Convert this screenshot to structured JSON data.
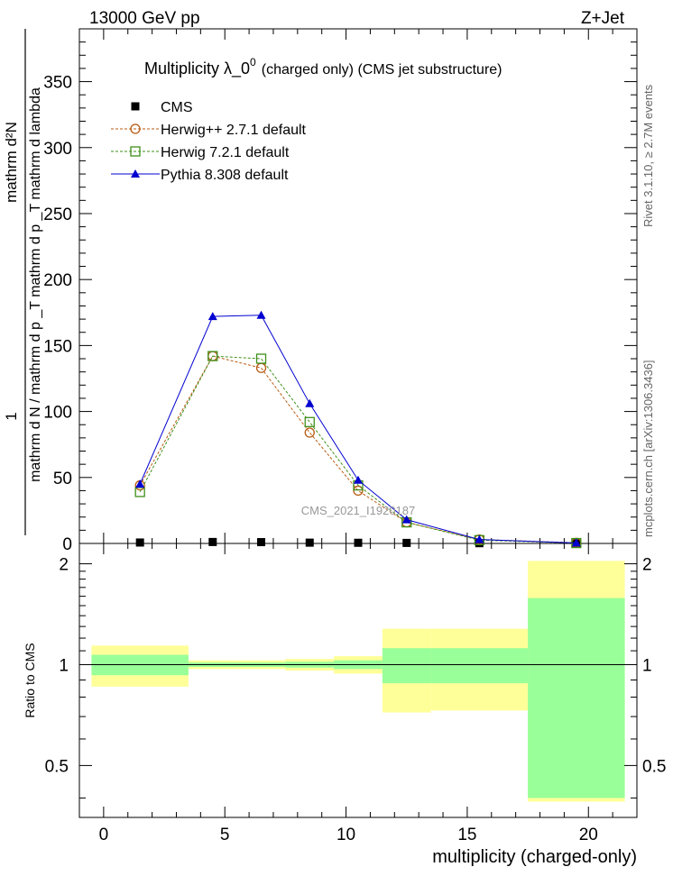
{
  "header": {
    "energy_label": "13000 GeV pp",
    "process_label": "Z+Jet"
  },
  "side_labels": {
    "rivet": "Rivet 3.1.10, ≥ 2.7M events",
    "mcplots": "mcplots.cern.ch [arXiv:1306.3436]"
  },
  "chart_data": [
    {
      "type": "line",
      "title_main": "Multiplicity  λ_0",
      "title_sup": "0",
      "title_rest": "(charged only) (CMS jet substructure)",
      "ylabel_numerator": "1",
      "ylabel_denominator": "mathrm d N / mathrm d p  _T mathrm d p  _T mathrm d lambda",
      "ylabel_top": "mathrm d²N",
      "watermark": "CMS_2021_I1920187",
      "xlim": [
        -1,
        22
      ],
      "ylim": [
        0,
        390
      ],
      "yticks": [
        0,
        50,
        100,
        150,
        200,
        250,
        300,
        350
      ],
      "x": [
        1.5,
        4.5,
        6.5,
        8.5,
        10.5,
        12.5,
        15.5,
        19.5
      ],
      "series": [
        {
          "name": "CMS",
          "marker": "filled-square",
          "color": "#000000",
          "values": [
            0.7,
            1.1,
            1.0,
            0.6,
            0.5,
            0.4,
            0.2,
            0.05
          ]
        },
        {
          "name": "Herwig++ 2.7.1 default",
          "marker": "open-circle",
          "color": "#b85a12",
          "dash": "dotted",
          "values": [
            44,
            142,
            133,
            84,
            40,
            16,
            3,
            0.5
          ]
        },
        {
          "name": "Herwig 7.2.1 default",
          "marker": "open-square",
          "color": "#3f8f1a",
          "dash": "dotted",
          "values": [
            39,
            142,
            140,
            92,
            44,
            16,
            2.5,
            0.3
          ]
        },
        {
          "name": "Pythia 8.308 default",
          "marker": "filled-triangle",
          "color": "#0000d0",
          "dash": "solid",
          "values": [
            45,
            172,
            173,
            106,
            48,
            18,
            3,
            0.4
          ]
        }
      ]
    },
    {
      "type": "area",
      "ylabel": "Ratio to CMS",
      "xlabel": "multiplicity (charged-only)",
      "xlim": [
        -1,
        22
      ],
      "ylim": [
        0.35,
        2.3
      ],
      "xticks": [
        0,
        5,
        10,
        15,
        20
      ],
      "yticks": [
        0.5,
        1,
        2
      ],
      "reference_line": 1,
      "bins": [
        {
          "x0": -0.5,
          "x1": 3.5,
          "green": [
            0.93,
            1.07
          ],
          "yellow": [
            0.86,
            1.14
          ]
        },
        {
          "x0": 3.5,
          "x1": 5.5,
          "green": [
            0.985,
            1.015
          ],
          "yellow": [
            0.97,
            1.03
          ]
        },
        {
          "x0": 5.5,
          "x1": 7.5,
          "green": [
            0.985,
            1.015
          ],
          "yellow": [
            0.97,
            1.03
          ]
        },
        {
          "x0": 7.5,
          "x1": 9.5,
          "green": [
            0.98,
            1.02
          ],
          "yellow": [
            0.96,
            1.04
          ]
        },
        {
          "x0": 9.5,
          "x1": 11.5,
          "green": [
            0.97,
            1.03
          ],
          "yellow": [
            0.94,
            1.06
          ]
        },
        {
          "x0": 11.5,
          "x1": 13.5,
          "green": [
            0.88,
            1.12
          ],
          "yellow": [
            0.72,
            1.28
          ]
        },
        {
          "x0": 13.5,
          "x1": 17.5,
          "green": [
            0.88,
            1.12
          ],
          "yellow": [
            0.73,
            1.28
          ]
        },
        {
          "x0": 17.5,
          "x1": 21.5,
          "green": [
            0.4,
            1.58
          ],
          "yellow": [
            0.39,
            2.04
          ]
        }
      ],
      "colors": {
        "green": "#99ff99",
        "yellow": "#ffff99"
      }
    }
  ]
}
